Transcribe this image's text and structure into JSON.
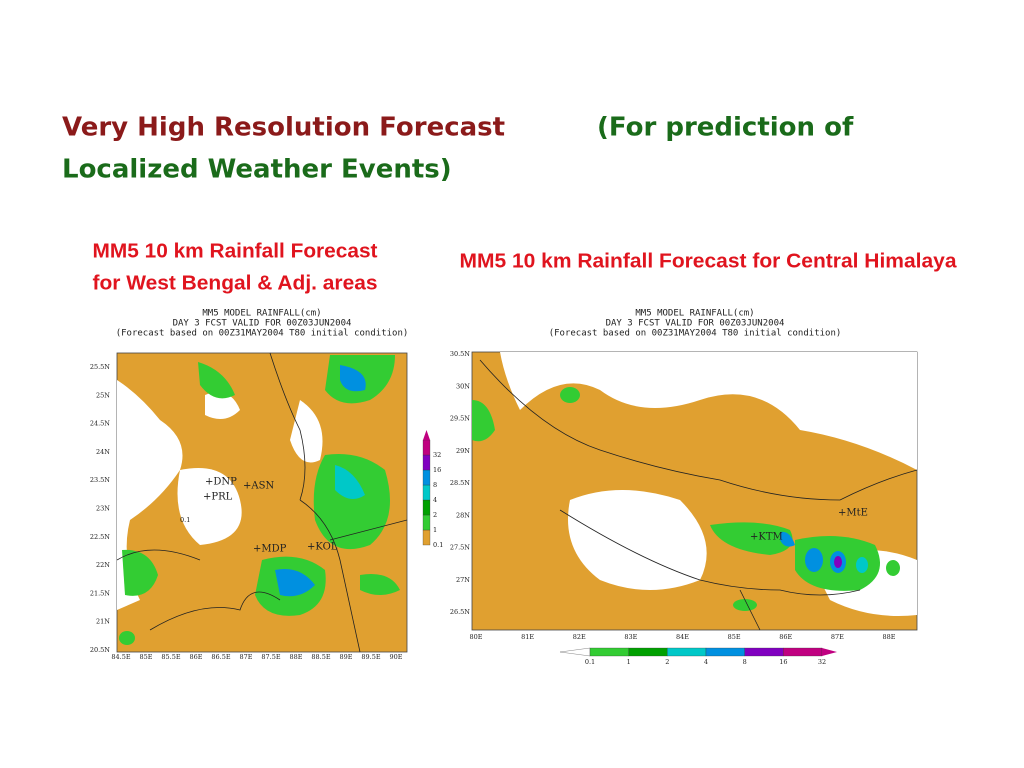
{
  "title": [
    "Very High Resolution Forecast",
    "(For prediction of",
    "Localized Weather Events)"
  ],
  "maps": [
    {
      "caption": [
        "MM5 10 km Rainfall Forecast",
        "for West Bengal & Adj. areas"
      ],
      "header": [
        "MM5 MODEL RAINFALL(cm)",
        "DAY 3 FCST VALID FOR 00Z03JUN2004",
        "(Forecast based on 00Z31MAY2004 T80 initial condition)"
      ],
      "yticks": [
        "25.5N",
        "25N",
        "24.5N",
        "24N",
        "23.5N",
        "23N",
        "22.5N",
        "22N",
        "21.5N",
        "21N",
        "20.5N"
      ],
      "xticks": [
        "84.5E",
        "85E",
        "85.5E",
        "86E",
        "86.5E",
        "87E",
        "87.5E",
        "88E",
        "88.5E",
        "89E",
        "89.5E",
        "90E"
      ],
      "legend": [
        0.1,
        1,
        2,
        4,
        8,
        16,
        32
      ],
      "places": [
        "+DNP",
        "+PRL",
        "+ASN",
        "+MDP",
        "+KOL"
      ]
    },
    {
      "caption": [
        "MM5 10 km Rainfall Forecast for Central Himalaya"
      ],
      "header": [
        "MM5 MODEL RAINFALL(cm)",
        "DAY 3 FCST VALID FOR 00Z03JUN2004",
        "(Forecast based on 00Z31MAY2004 T80 initial condition)"
      ],
      "yticks": [
        "30.5N",
        "30N",
        "29.5N",
        "29N",
        "28.5N",
        "28N",
        "27.5N",
        "27N",
        "26.5N"
      ],
      "xticks": [
        "80E",
        "81E",
        "82E",
        "83E",
        "84E",
        "85E",
        "86E",
        "87E",
        "88E"
      ],
      "legend": [
        0.1,
        1,
        2,
        4,
        8,
        16,
        32
      ],
      "places": [
        "+KTM",
        "+MtE"
      ]
    }
  ]
}
